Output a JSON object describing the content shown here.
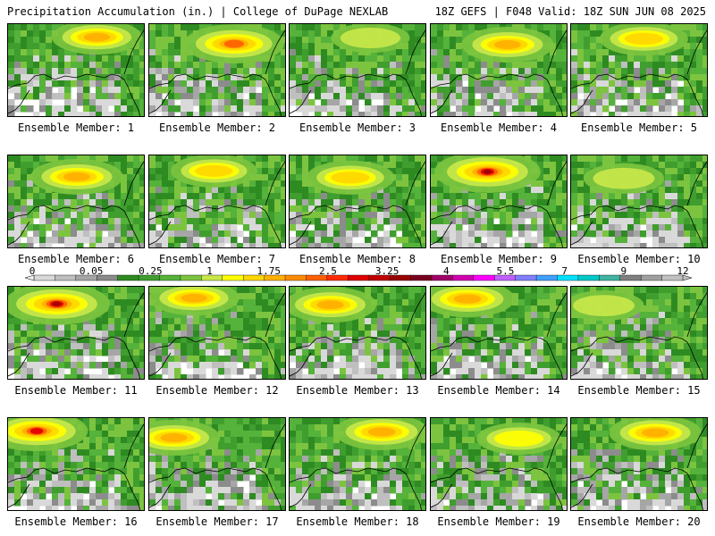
{
  "header": {
    "left": "Precipitation Accumulation (in.) | College of DuPage NEXLAB",
    "right": "18Z GEFS | F048 Valid: 18Z SUN JUN 08 2025"
  },
  "colorbar": {
    "labels": [
      "0",
      "0.05",
      "0.25",
      "1",
      "1.75",
      "2.5",
      "3.25",
      "4",
      "5.5",
      "7",
      "9",
      "12"
    ],
    "colors": [
      "#d9d9d9",
      "#bfbfbf",
      "#a6a6a6",
      "#8c8c8c",
      "#2e8b22",
      "#3f9e2e",
      "#55b23a",
      "#7cc43f",
      "#c8e84a",
      "#ffff00",
      "#ffd700",
      "#ffb000",
      "#ff8c00",
      "#ff6000",
      "#ff2a00",
      "#e00000",
      "#c00000",
      "#990000",
      "#7a0020",
      "#a0006a",
      "#d000b0",
      "#ff00ff",
      "#c060ff",
      "#8080ff",
      "#40a0ff",
      "#00e0ff",
      "#00c8c8",
      "#40b4a0",
      "#808080",
      "#a0a0a0",
      "#c0c0c0"
    ]
  },
  "panels": [
    {
      "caption": "Ensemble Member: 1",
      "intensity": 0.55
    },
    {
      "caption": "Ensemble Member: 2",
      "intensity": 0.8
    },
    {
      "caption": "Ensemble Member: 3",
      "intensity": 0.25
    },
    {
      "caption": "Ensemble Member: 4",
      "intensity": 0.6
    },
    {
      "caption": "Ensemble Member: 5",
      "intensity": 0.5
    },
    {
      "caption": "Ensemble Member: 6",
      "intensity": 0.6
    },
    {
      "caption": "Ensemble Member: 7",
      "intensity": 0.45
    },
    {
      "caption": "Ensemble Member: 8",
      "intensity": 0.5
    },
    {
      "caption": "Ensemble Member: 9",
      "intensity": 0.95
    },
    {
      "caption": "Ensemble Member: 10",
      "intensity": 0.3
    },
    {
      "caption": "Ensemble Member: 11",
      "intensity": 0.95
    },
    {
      "caption": "Ensemble Member: 12",
      "intensity": 0.55
    },
    {
      "caption": "Ensemble Member: 13",
      "intensity": 0.6
    },
    {
      "caption": "Ensemble Member: 14",
      "intensity": 0.65
    },
    {
      "caption": "Ensemble Member: 15",
      "intensity": 0.3
    },
    {
      "caption": "Ensemble Member: 16",
      "intensity": 0.85
    },
    {
      "caption": "Ensemble Member: 17",
      "intensity": 0.6
    },
    {
      "caption": "Ensemble Member: 18",
      "intensity": 0.65
    },
    {
      "caption": "Ensemble Member: 19",
      "intensity": 0.4
    },
    {
      "caption": "Ensemble Member: 20",
      "intensity": 0.6
    }
  ]
}
